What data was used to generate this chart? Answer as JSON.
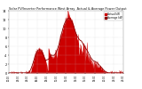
{
  "title": "Solar PV/Inverter Performance West Array  Actual & Average Power Output",
  "bg_color": "#ffffff",
  "plot_bg_color": "#ffffff",
  "grid_color": "#c8c8c8",
  "fill_color": "#cc0000",
  "line_color": "#cc0000",
  "avg_line_color": "#880000",
  "xlim": [
    0,
    288
  ],
  "ylim": [
    0,
    14
  ],
  "ytick_vals": [
    0,
    2,
    4,
    6,
    8,
    10,
    12,
    14
  ],
  "ytick_labels": [
    "0",
    "2",
    "4",
    "6",
    "8",
    "10",
    "12",
    "14"
  ],
  "n_points": 288,
  "legend_labels": [
    "Actual kW",
    "Average kW"
  ],
  "legend_colors": [
    "#cc0000",
    "#880000"
  ],
  "figsize": [
    1.6,
    1.0
  ],
  "dpi": 100
}
